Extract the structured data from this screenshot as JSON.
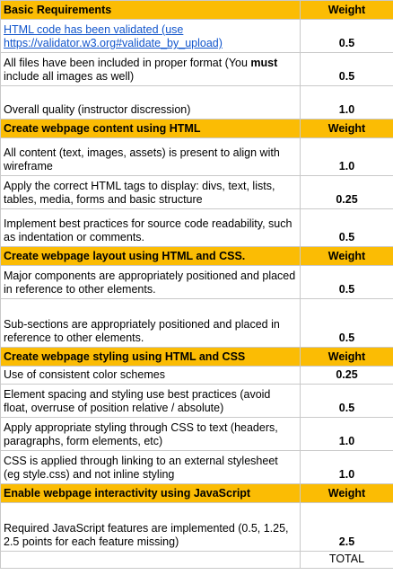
{
  "sections": [
    {
      "title": "Basic Requirements",
      "weight_header": "Weight",
      "rows": [
        {
          "link_text": "HTML code has been validated (use https://validator.w3.org#validate_by_upload)",
          "weight": "0.5"
        },
        {
          "pre": "All files have been included in proper format (You ",
          "bold": "must",
          "post": " include all images as well)",
          "weight": "0.5"
        },
        {
          "text": "Overall quality (instructor discression)",
          "weight": "1.0"
        }
      ]
    },
    {
      "title": "Create webpage content using HTML",
      "weight_header": "Weight",
      "rows": [
        {
          "text": "All content (text, images, assets) is present to align with wireframe",
          "weight": "1.0"
        },
        {
          "text": "Apply the correct HTML tags to display: divs, text, lists, tables, media, forms and basic structure",
          "weight": "0.25"
        },
        {
          "text": "Implement best practices for source code readability, such as indentation or comments.",
          "weight": "0.5"
        }
      ]
    },
    {
      "title": "Create webpage layout using HTML and CSS.",
      "weight_header": "Weight",
      "rows": [
        {
          "text": "Major components are appropriately positioned and placed in reference to other elements.",
          "weight": "0.5"
        },
        {
          "text": "Sub-sections are appropriately positioned and placed in reference to other elements.",
          "weight": "0.5"
        }
      ]
    },
    {
      "title": "Create webpage styling using HTML and CSS",
      "weight_header": "Weight",
      "rows": [
        {
          "text": "Use of consistent color schemes",
          "weight": "0.25"
        },
        {
          "text": "Element spacing and styling use best practices (avoid float, overruse of position relative / absolute)",
          "weight": "0.5"
        },
        {
          "text": "Apply appropriate styling through CSS to text (headers, paragraphs, form elements, etc)",
          "weight": "1.0"
        },
        {
          "text": "CSS is applied through linking to an external stylesheet (eg style.css) and not inline styling",
          "weight": "1.0"
        }
      ]
    },
    {
      "title": "Enable webpage interactivity using JavaScript",
      "weight_header": "Weight",
      "rows": [
        {
          "text": "Required JavaScript features are implemented (0.5, 1.25, 2.5 points for each feature missing)",
          "weight": "2.5"
        }
      ]
    }
  ],
  "total_label": "TOTAL"
}
